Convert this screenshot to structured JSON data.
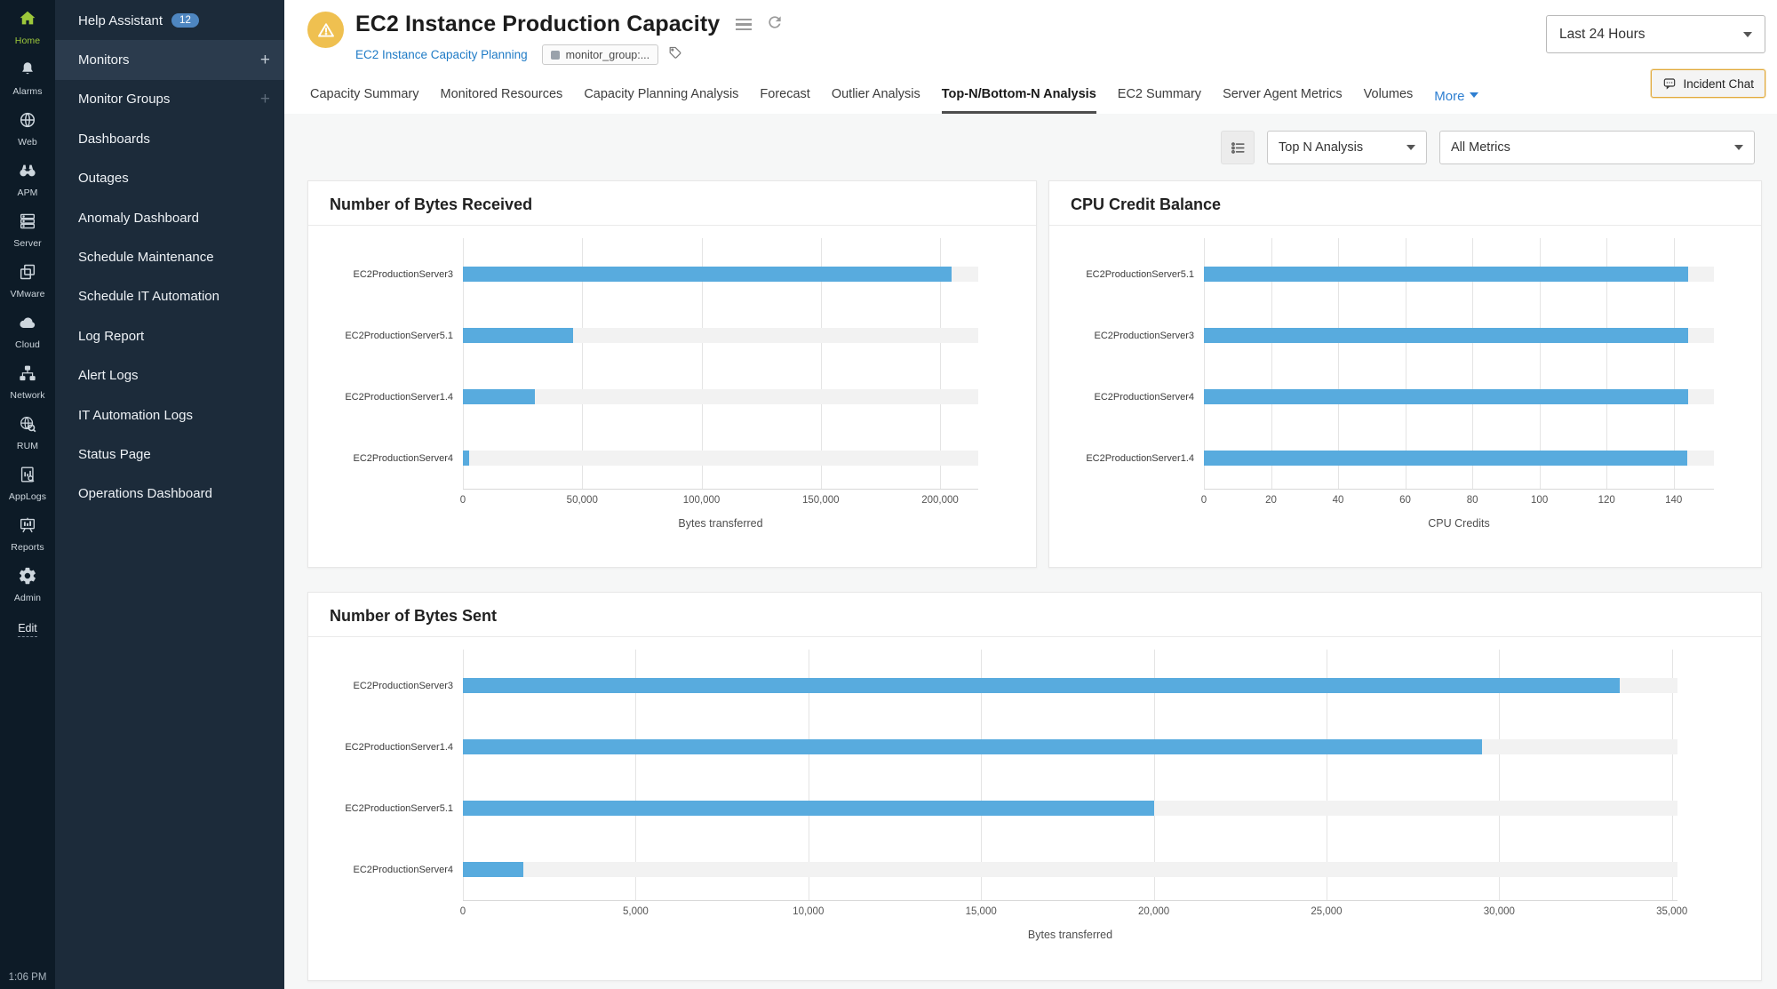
{
  "rail": {
    "items": [
      {
        "label": "Home",
        "icon": "home-icon",
        "active": true
      },
      {
        "label": "Alarms",
        "icon": "bell-icon",
        "active": false
      },
      {
        "label": "Web",
        "icon": "globe-icon",
        "active": false
      },
      {
        "label": "APM",
        "icon": "binoculars-icon",
        "active": false
      },
      {
        "label": "Server",
        "icon": "server-icon",
        "active": false
      },
      {
        "label": "VMware",
        "icon": "vmware-icon",
        "active": false
      },
      {
        "label": "Cloud",
        "icon": "cloud-icon",
        "active": false
      },
      {
        "label": "Network",
        "icon": "network-icon",
        "active": false
      },
      {
        "label": "RUM",
        "icon": "rum-icon",
        "active": false
      },
      {
        "label": "AppLogs",
        "icon": "applogs-icon",
        "active": false
      },
      {
        "label": "Reports",
        "icon": "reports-icon",
        "active": false
      },
      {
        "label": "Admin",
        "icon": "gear-icon",
        "active": false
      }
    ],
    "edit_label": "Edit",
    "time": "1:06 PM"
  },
  "sidebar": {
    "items": [
      {
        "label": "Help Assistant",
        "badge": "12"
      },
      {
        "label": "Monitors",
        "active": true,
        "plus": true
      },
      {
        "label": "Monitor Groups",
        "plus": true,
        "plus_dim": true
      },
      {
        "label": "Dashboards"
      },
      {
        "label": "Outages"
      },
      {
        "label": "Anomaly Dashboard"
      },
      {
        "label": "Schedule Maintenance"
      },
      {
        "label": "Schedule IT Automation"
      },
      {
        "label": "Log Report"
      },
      {
        "label": "Alert Logs"
      },
      {
        "label": "IT Automation Logs"
      },
      {
        "label": "Status Page"
      },
      {
        "label": "Operations Dashboard"
      }
    ]
  },
  "header": {
    "title": "EC2 Instance Production Capacity",
    "breadcrumb_link": "EC2 Instance Capacity Planning",
    "monitor_group_chip": "monitor_group:...",
    "time_range": "Last 24 Hours",
    "incident_chat_label": "Incident Chat"
  },
  "tabs": {
    "items": [
      "Capacity Summary",
      "Monitored Resources",
      "Capacity Planning Analysis",
      "Forecast",
      "Outlier Analysis",
      "Top-N/Bottom-N Analysis",
      "EC2 Summary",
      "Server Agent Metrics",
      "Volumes"
    ],
    "active": "Top-N/Bottom-N Analysis",
    "more_label": "More"
  },
  "filters": {
    "analysis_type": "Top N Analysis",
    "metrics": "All Metrics"
  },
  "colors": {
    "bar": "#58ABDE",
    "bar_track": "#f2f2f2",
    "accent_link": "#1F7BC6",
    "warning_badge": "#EFC050",
    "incident_border": "#E2A93B",
    "rail_bg": "#0d1b27",
    "sidebar_bg": "#1c2b3a"
  },
  "chart_data": [
    {
      "type": "bar",
      "orientation": "horizontal",
      "title": "Number of Bytes Received",
      "categories": [
        "EC2ProductionServer3",
        "EC2ProductionServer5.1",
        "EC2ProductionServer1.4",
        "EC2ProductionServer4"
      ],
      "values": [
        205000,
        46000,
        30000,
        2500
      ],
      "xlabel": "Bytes transferred",
      "xlim": [
        0,
        216000
      ],
      "xticks": [
        0,
        50000,
        100000,
        150000,
        200000
      ],
      "xtick_labels": [
        "0",
        "50,000",
        "100,000",
        "150,000",
        "200,000"
      ],
      "grid": true,
      "legend": false,
      "right_margin": 41
    },
    {
      "type": "bar",
      "orientation": "horizontal",
      "title": "CPU Credit Balance",
      "categories": [
        "EC2ProductionServer5.1",
        "EC2ProductionServer3",
        "EC2ProductionServer4",
        "EC2ProductionServer1.4"
      ],
      "values": [
        144.4,
        144.3,
        144.2,
        144.1
      ],
      "xlabel": "CPU Credits",
      "xlim": [
        0,
        152
      ],
      "xticks": [
        0,
        20,
        40,
        60,
        80,
        100,
        120,
        140
      ],
      "xtick_labels": [
        "0",
        "20",
        "40",
        "60",
        "80",
        "100",
        "120",
        "140"
      ],
      "grid": true,
      "legend": false,
      "right_margin": 29
    },
    {
      "type": "bar",
      "orientation": "horizontal",
      "title": "Number of Bytes Sent",
      "categories": [
        "EC2ProductionServer3",
        "EC2ProductionServer1.4",
        "EC2ProductionServer5.1",
        "EC2ProductionServer4"
      ],
      "values": [
        33500,
        29500,
        20000,
        1750
      ],
      "xlabel": "Bytes transferred",
      "xlim": [
        0,
        35160
      ],
      "xticks": [
        0,
        5000,
        10000,
        15000,
        20000,
        25000,
        30000,
        35000
      ],
      "xtick_labels": [
        "0",
        "5,000",
        "10,000",
        "15,000",
        "20,000",
        "25,000",
        "30,000",
        "35,000"
      ],
      "grid": true,
      "legend": false,
      "right_margin": 70
    }
  ]
}
